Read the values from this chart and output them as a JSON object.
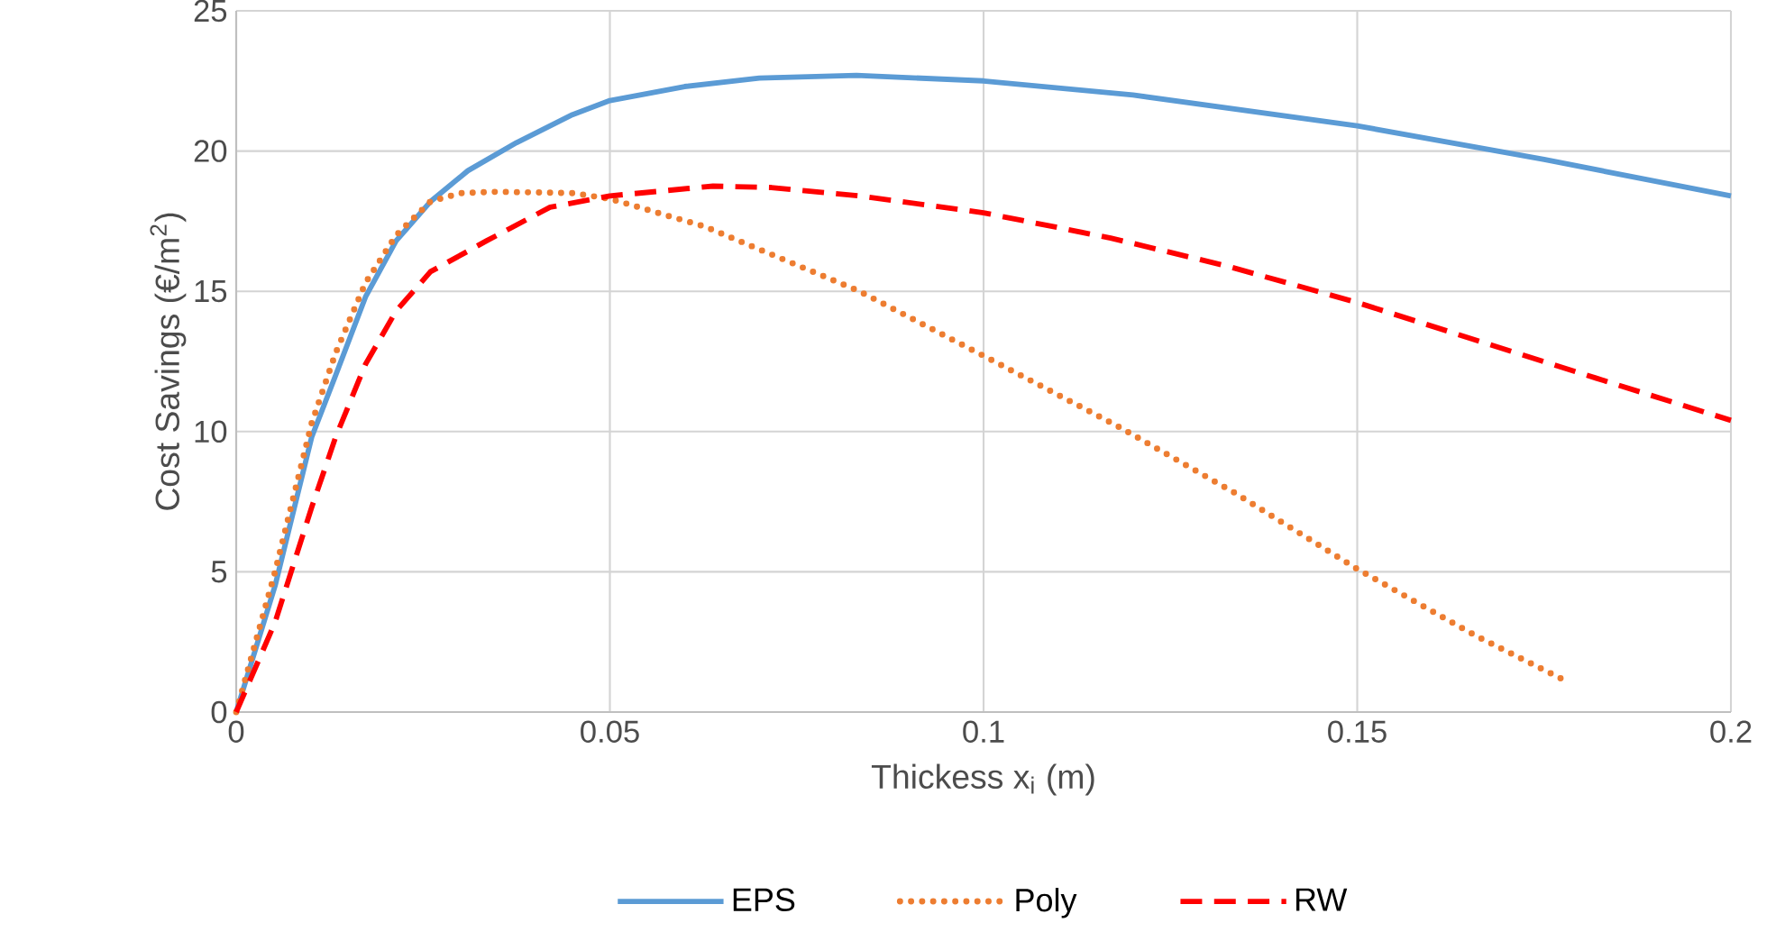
{
  "chart_data": {
    "type": "line",
    "xlabel": "Thickess x$_{i}$ (m)",
    "ylabel": "Cost Savings (€/m$^{2}$)",
    "xlim": [
      0,
      0.2
    ],
    "ylim": [
      0,
      25
    ],
    "xticks": [
      0,
      0.05,
      0.1,
      0.15,
      0.2
    ],
    "yticks": [
      0,
      5,
      10,
      15,
      20,
      25
    ],
    "grid": true,
    "legend": "bottom",
    "series": [
      {
        "name": "EPS",
        "color": "#5b9bd5",
        "line_style": "solid",
        "x": [
          0,
          0.0052,
          0.0101,
          0.0133,
          0.0173,
          0.0214,
          0.026,
          0.031,
          0.0375,
          0.045,
          0.05,
          0.06,
          0.07,
          0.083,
          0.1,
          0.12,
          0.15,
          0.175,
          0.2
        ],
        "values": [
          0,
          4.5,
          9.8,
          12,
          14.8,
          16.8,
          18.2,
          19.3,
          20.3,
          21.3,
          21.8,
          22.3,
          22.6,
          22.7,
          22.5,
          22,
          20.9,
          19.7,
          18.4
        ]
      },
      {
        "name": "Poly",
        "color": "#ed7d31",
        "line_style": "dotted",
        "x": [
          0,
          0.0052,
          0.0101,
          0.0133,
          0.0173,
          0.0214,
          0.026,
          0.03,
          0.035,
          0.045,
          0.05,
          0.0628,
          0.0834,
          0.1,
          0.1179,
          0.1337,
          0.15,
          0.166,
          0.178
        ],
        "values": [
          0,
          5,
          10.3,
          12.8,
          15.3,
          17,
          18.2,
          18.5,
          18.55,
          18.5,
          18.3,
          17.3,
          15,
          12.7,
          10.2,
          7.8,
          5.1,
          2.7,
          1.1
        ]
      },
      {
        "name": "RW",
        "color": "#ff0000",
        "line_style": "dashed",
        "x": [
          0,
          0.0052,
          0.0101,
          0.0133,
          0.0173,
          0.0214,
          0.026,
          0.0335,
          0.042,
          0.05,
          0.0638,
          0.0716,
          0.0834,
          0.1,
          0.117,
          0.1326,
          0.15,
          0.166,
          0.182,
          0.2
        ],
        "values": [
          0,
          3.2,
          7.3,
          9.8,
          12.4,
          14.3,
          15.7,
          16.8,
          18,
          18.4,
          18.75,
          18.7,
          18.4,
          17.8,
          16.9,
          15.9,
          14.6,
          13.25,
          11.9,
          10.4
        ]
      }
    ]
  }
}
